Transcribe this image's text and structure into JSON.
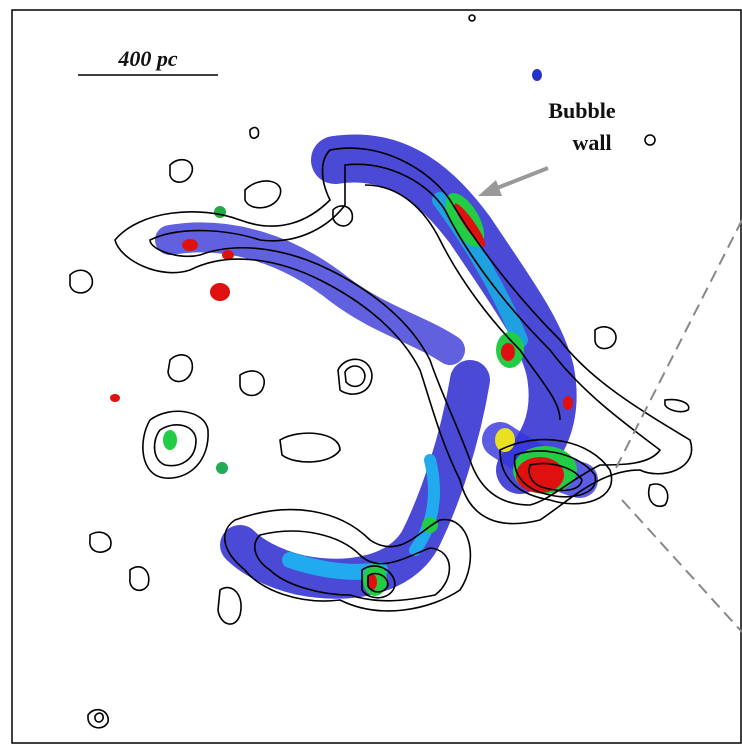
{
  "scale_bar": {
    "label": "400 pc"
  },
  "annotation": {
    "line1": "Bubble",
    "line2": "wall"
  }
}
